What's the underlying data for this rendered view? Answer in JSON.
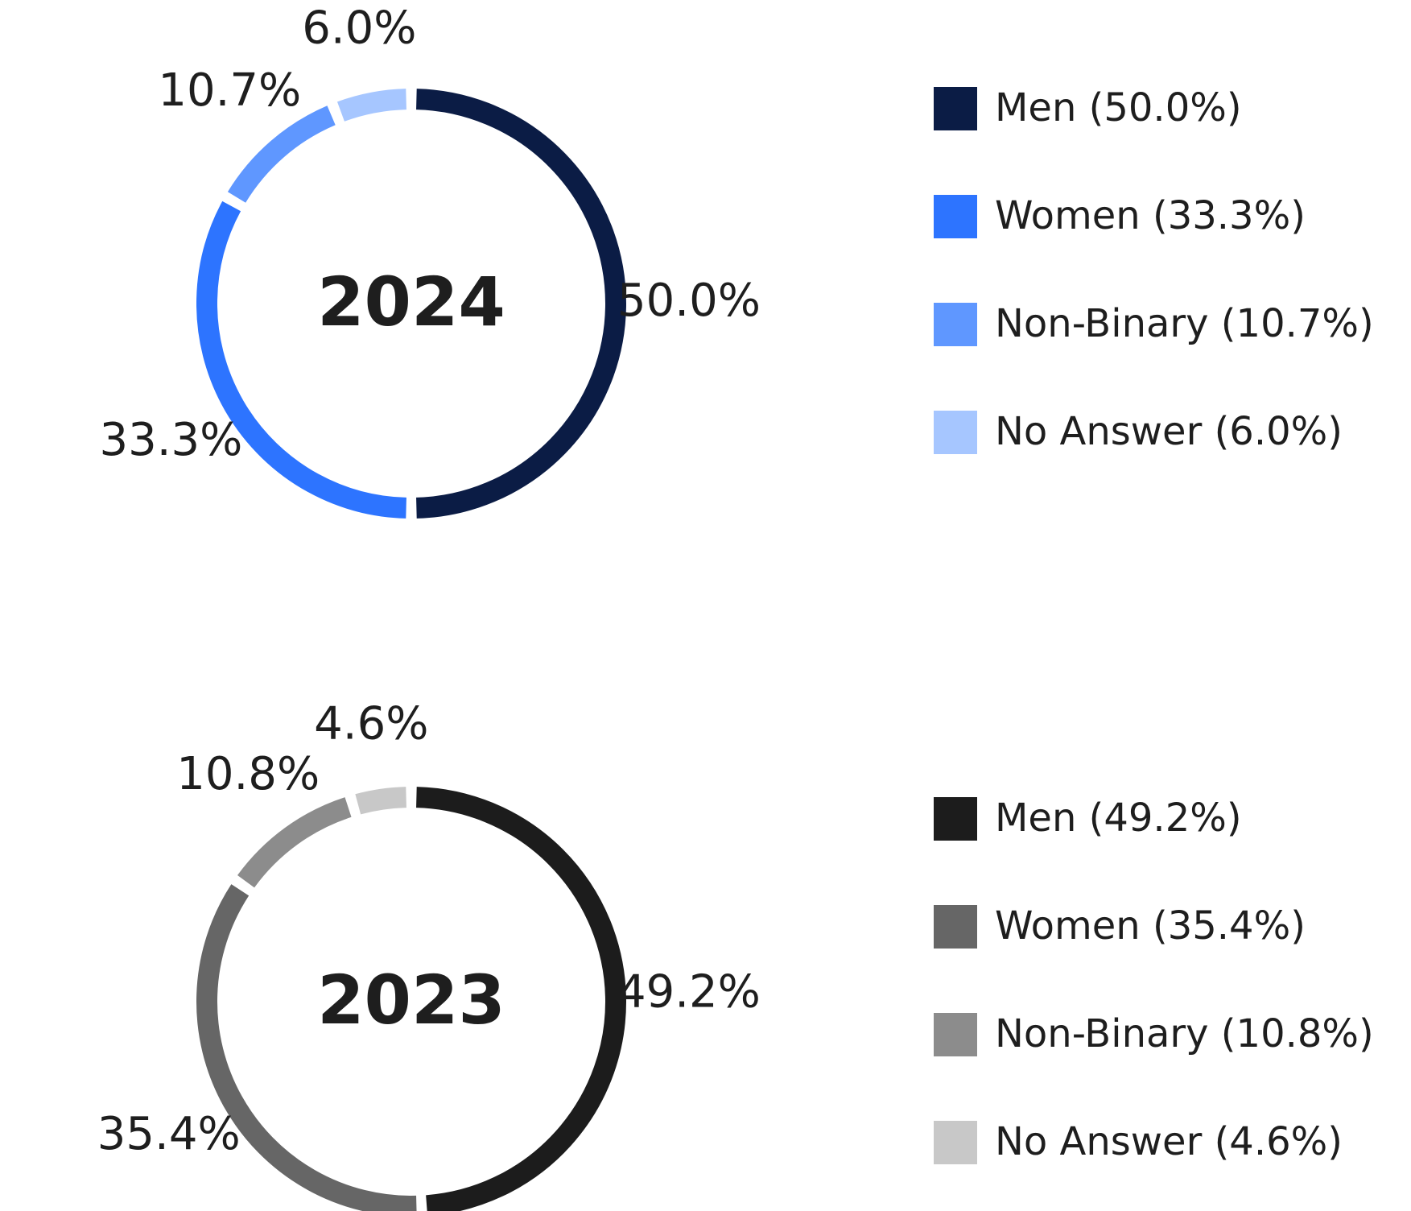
{
  "chart_data": [
    {
      "type": "donut",
      "title": "2024",
      "categories": [
        "Men (50.0%)",
        "Women (33.3%)",
        "Non-Binary (10.7%)",
        "No Answer (6.0%)"
      ],
      "values": [
        50.0,
        33.3,
        10.7,
        6.0
      ],
      "value_labels": [
        "50.0%",
        "33.3%",
        "10.7%",
        "6.0%"
      ],
      "colors": [
        "#0b1c45",
        "#2d74ff",
        "#5f97ff",
        "#a6c6ff"
      ]
    },
    {
      "type": "donut",
      "title": "2023",
      "categories": [
        "Men (49.2%)",
        "Women (35.4%)",
        "Non-Binary (10.8%)",
        "No Answer (4.6%)"
      ],
      "values": [
        49.2,
        35.4,
        10.8,
        4.6
      ],
      "value_labels": [
        "49.2%",
        "35.4%",
        "10.8%",
        "4.6%"
      ],
      "colors": [
        "#1c1c1c",
        "#666666",
        "#8c8c8c",
        "#c8c8c8"
      ]
    }
  ]
}
